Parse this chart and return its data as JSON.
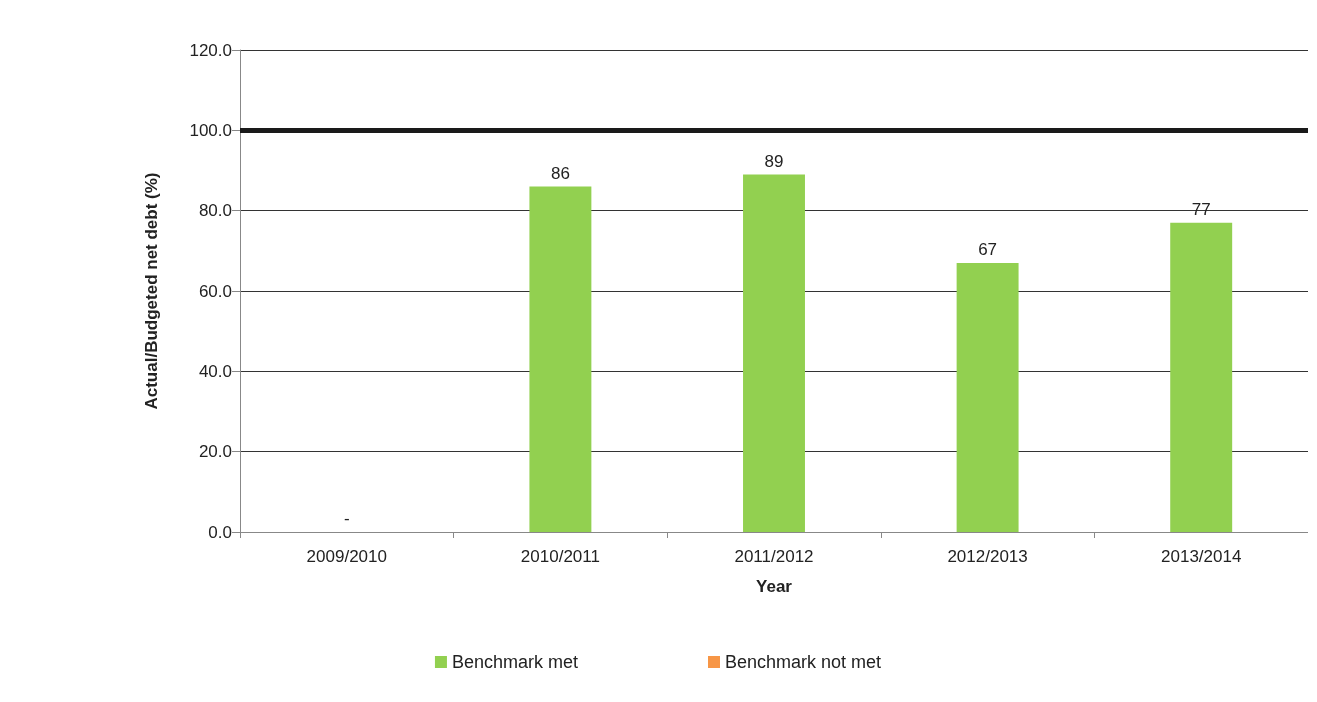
{
  "chart_data": {
    "type": "bar",
    "xlabel": "Year",
    "ylabel": "Actual/Budgeted net debt (%)",
    "categories": [
      "2009/2010",
      "2010/2011",
      "2011/2012",
      "2012/2013",
      "2013/2014"
    ],
    "stacked": true,
    "series": [
      {
        "name": "Benchmark met",
        "color": "#92d050",
        "values": [
          0,
          86,
          89,
          67,
          77
        ],
        "value_labels": [
          "-",
          "86",
          "89",
          "67",
          "77"
        ]
      },
      {
        "name": "Benchmark not met",
        "color": "#f79646",
        "values": [
          null,
          null,
          null,
          null,
          null
        ]
      }
    ],
    "ylim": [
      0,
      120
    ],
    "yticks": [
      {
        "value": 0,
        "label": "0.0"
      },
      {
        "value": 20,
        "label": "20.0"
      },
      {
        "value": 40,
        "label": "40.0"
      },
      {
        "value": 60,
        "label": "60.0"
      },
      {
        "value": 80,
        "label": "80.0"
      },
      {
        "value": 100,
        "label": "100.0"
      },
      {
        "value": 120,
        "label": "120.0"
      }
    ],
    "ref_lines": [
      {
        "axis": "y",
        "value": 100,
        "color": "#1a1a1a"
      }
    ],
    "grid": "y",
    "legend": "bottom"
  }
}
